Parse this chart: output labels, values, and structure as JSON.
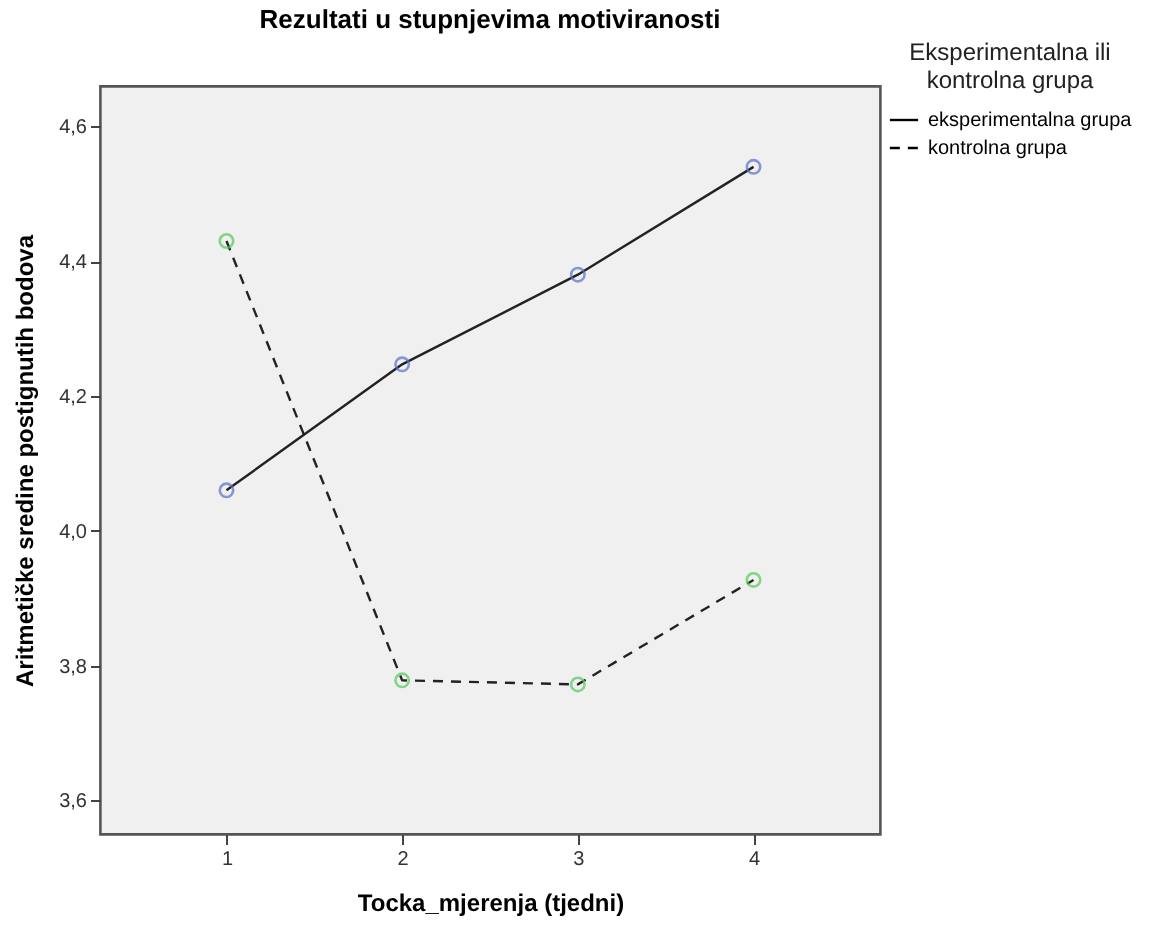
{
  "chart_data": {
    "type": "line",
    "title": "Rezultati u stupnjevima motiviranosti",
    "xlabel": "Tocka_mjerenja (tjedni)",
    "ylabel": "Aritmetičke sredine postignutih bodova",
    "legend_title": "Eksperimentalna ili kontrolna grupa",
    "x": [
      1,
      2,
      3,
      4
    ],
    "series": [
      {
        "name": "eksperimentalna grupa",
        "color": "#5b6fcc",
        "line_style": "solid",
        "values": [
          4.06,
          4.247,
          4.38,
          4.54
        ]
      },
      {
        "name": "kontrolna grupa",
        "color": "#55c95a",
        "line_style": "dashed",
        "values": [
          4.43,
          3.778,
          3.772,
          3.927
        ]
      }
    ],
    "xlim": [
      0.28,
      4.72
    ],
    "xticks": [
      1,
      2,
      3,
      4
    ],
    "ylim": [
      3.55,
      4.66
    ],
    "yticks": [
      {
        "value": 3.6,
        "label": "3,6"
      },
      {
        "value": 3.8,
        "label": "3,8"
      },
      {
        "value": 4.0,
        "label": "4,0"
      },
      {
        "value": 4.2,
        "label": "4,2"
      },
      {
        "value": 4.4,
        "label": "4,4"
      },
      {
        "value": 4.6,
        "label": "4,6"
      }
    ],
    "grid": false,
    "marker": "circle",
    "legend": "top right"
  }
}
